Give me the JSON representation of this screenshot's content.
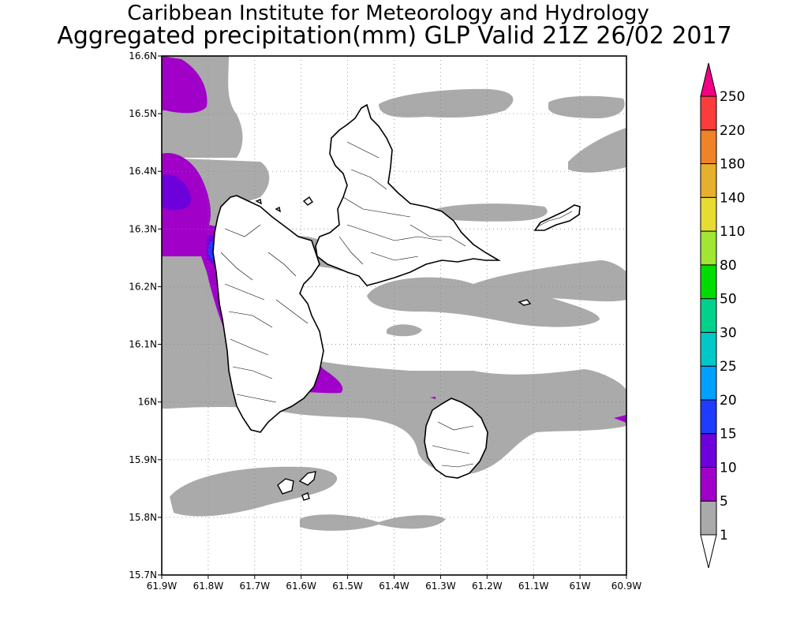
{
  "header": {
    "title": "Caribbean Institute for Meteorology and Hydrology",
    "subtitle": "Aggregated precipitation(mm) GLP Valid 21Z 26/02 2017"
  },
  "map": {
    "lon_labels": [
      "61.9W",
      "61.8W",
      "61.7W",
      "61.6W",
      "61.5W",
      "61.4W",
      "61.3W",
      "61.2W",
      "61.1W",
      "61W",
      "60.9W"
    ],
    "lat_labels": [
      "16.6N",
      "16.5N",
      "16.4N",
      "16.3N",
      "16.2N",
      "16.1N",
      "16N",
      "15.9N",
      "15.8N",
      "15.7N"
    ],
    "lon_range": [
      -61.9,
      -60.9
    ],
    "lat_range": [
      15.7,
      16.6
    ],
    "grid": true
  },
  "colorbar": {
    "levels": [
      "1",
      "5",
      "10",
      "15",
      "20",
      "25",
      "30",
      "50",
      "80",
      "110",
      "140",
      "180",
      "220",
      "250"
    ],
    "colors": [
      "#aaaaaa",
      "#a000c8",
      "#6e00dc",
      "#1e3cff",
      "#00a0ff",
      "#00c8c8",
      "#00d28c",
      "#00dc00",
      "#a0e632",
      "#e6dc32",
      "#e6af2d",
      "#f08228",
      "#fa3c3c",
      "#f00082"
    ]
  }
}
